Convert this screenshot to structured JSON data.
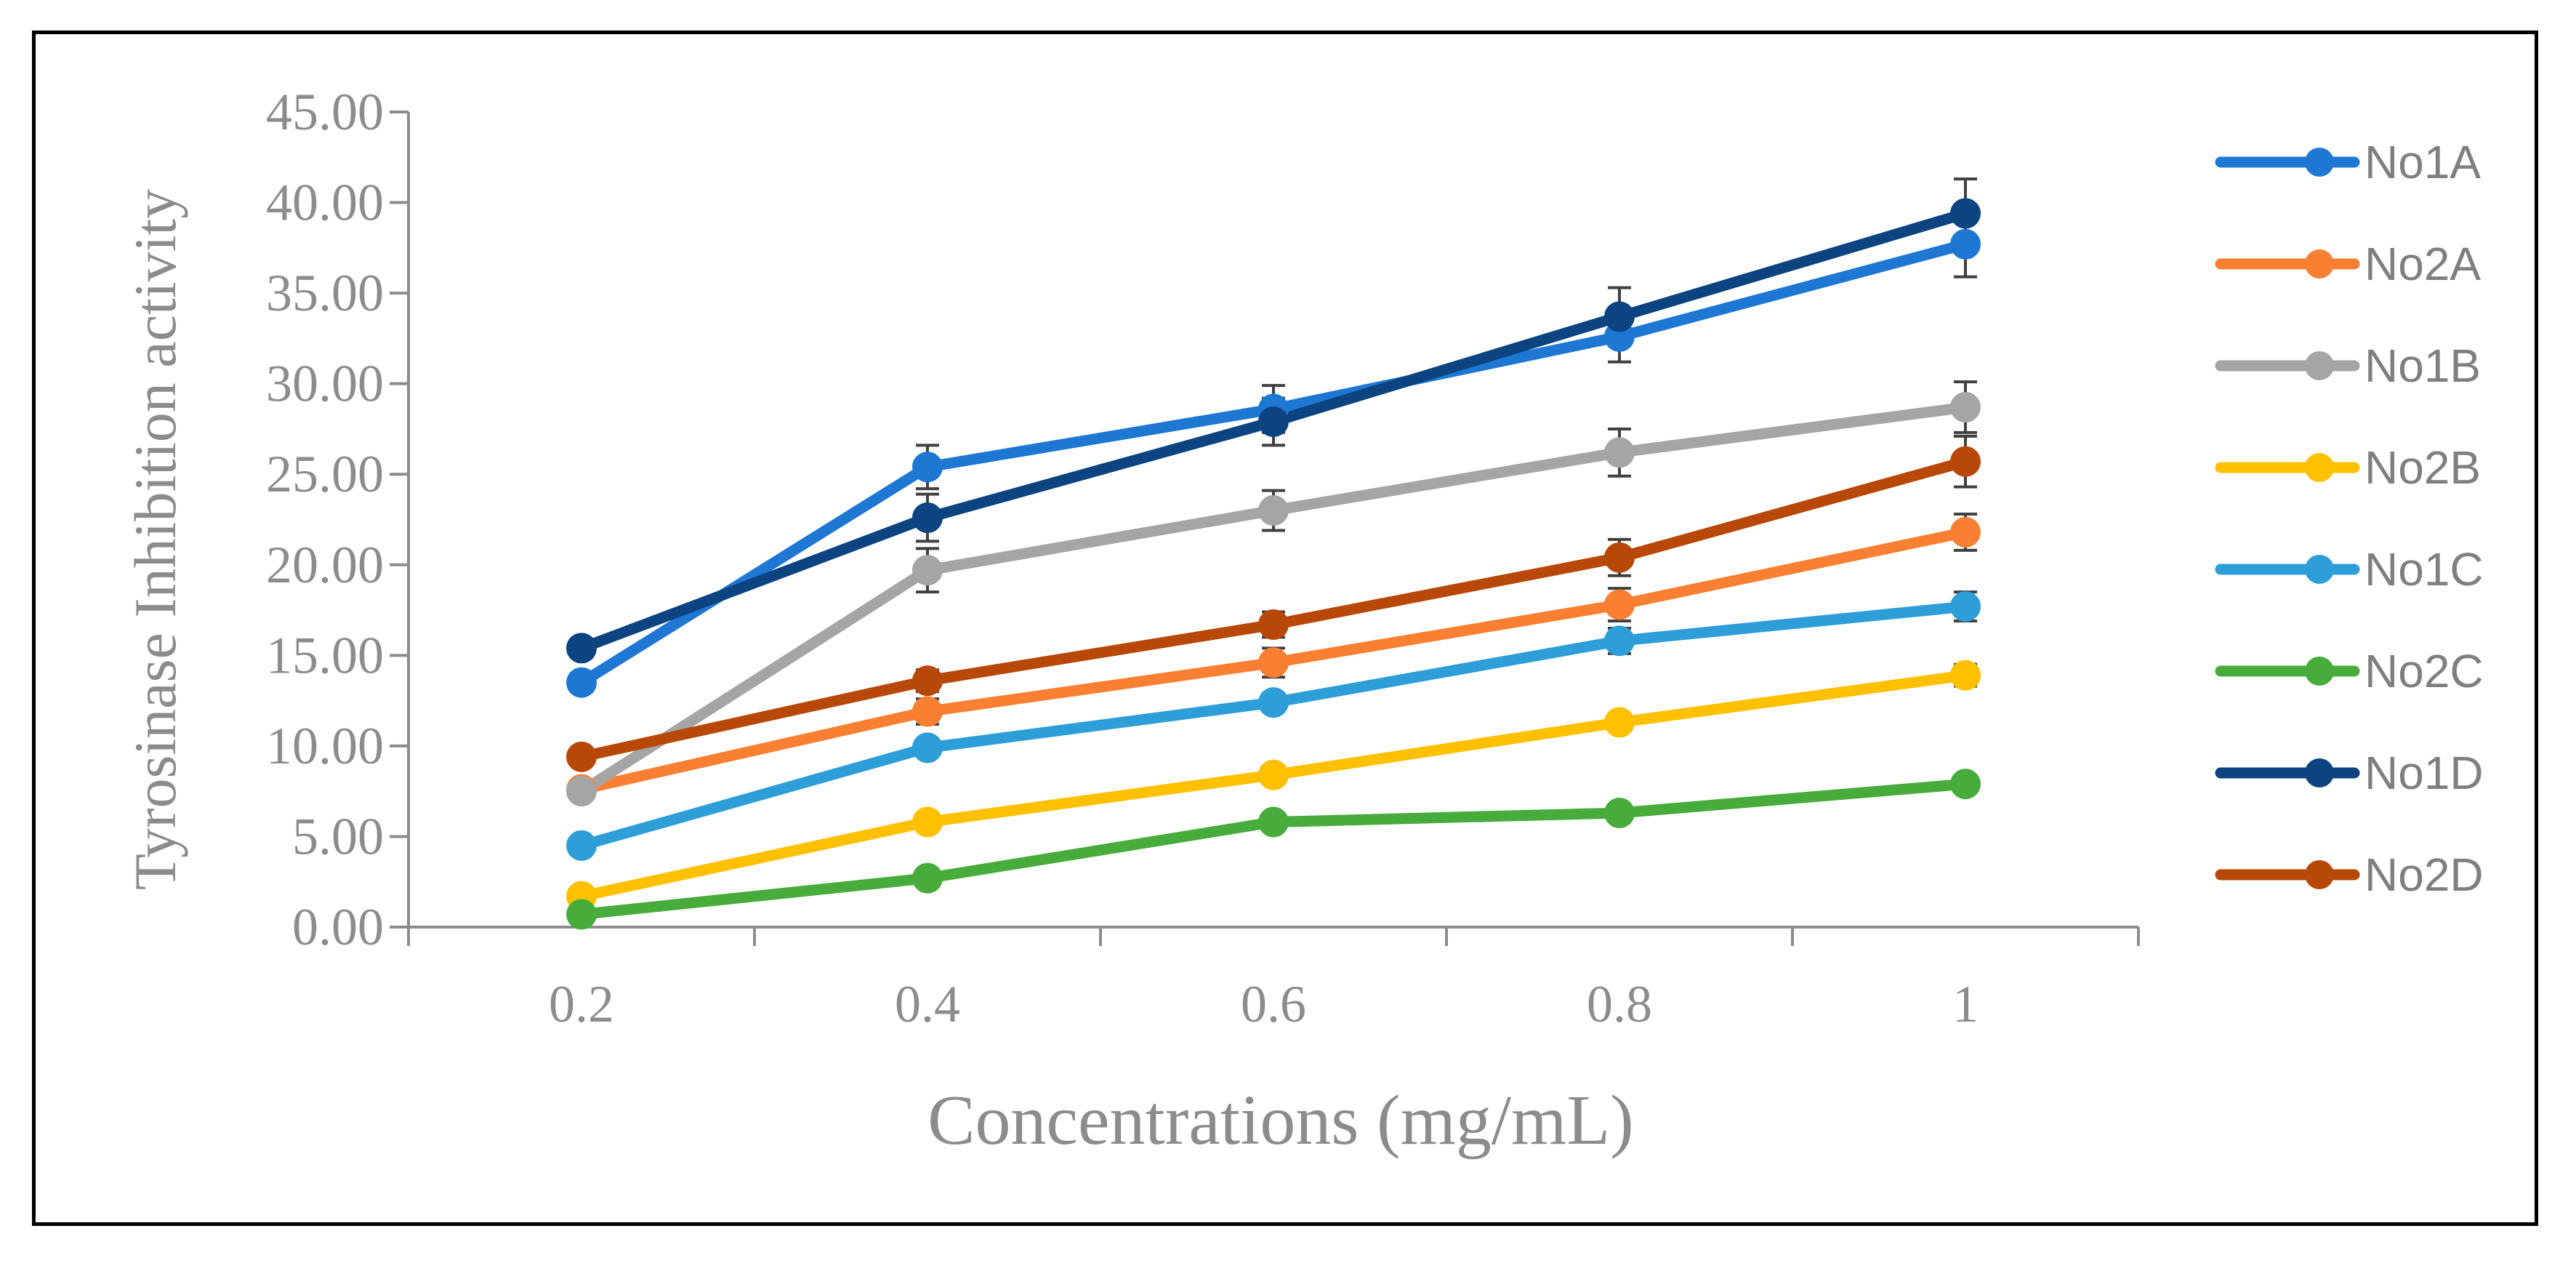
{
  "chart_data": {
    "type": "line",
    "title": "",
    "xlabel": "Concentrations (mg/mL)",
    "ylabel": "Tyrosinase Inhibition activity",
    "x": [
      0.2,
      0.4,
      0.6,
      0.8,
      1
    ],
    "x_tick_labels": [
      "0.2",
      "0.4",
      "0.6",
      "0.8",
      "1"
    ],
    "xlim": [
      0.1,
      1.1
    ],
    "ylim": [
      0,
      45
    ],
    "y_ticks": [
      0,
      5,
      10,
      15,
      20,
      25,
      30,
      35,
      40,
      45
    ],
    "y_tick_labels": [
      "0.00",
      "5.00",
      "10.00",
      "15.00",
      "20.00",
      "25.00",
      "30.00",
      "35.00",
      "40.00",
      "45.00"
    ],
    "grid": false,
    "legend_position": "right",
    "series": [
      {
        "name": "No1A",
        "color": "#1f77d4",
        "values": [
          13.5,
          25.4,
          28.6,
          32.6,
          37.7
        ],
        "errors": [
          0.5,
          1.2,
          1.3,
          1.4,
          1.8
        ]
      },
      {
        "name": "No2A",
        "color": "#f98033",
        "values": [
          7.6,
          11.9,
          14.6,
          17.8,
          21.8
        ],
        "errors": [
          0.3,
          0.7,
          0.8,
          0.9,
          1.0
        ]
      },
      {
        "name": "No1B",
        "color": "#a5a5a5",
        "values": [
          7.5,
          19.7,
          23.0,
          26.2,
          28.7
        ],
        "errors": [
          0.3,
          1.2,
          1.1,
          1.3,
          1.4
        ]
      },
      {
        "name": "No2B",
        "color": "#ffc000",
        "values": [
          1.7,
          5.8,
          8.4,
          11.3,
          13.9
        ],
        "errors": [
          0.2,
          0.3,
          0.3,
          0.4,
          0.6
        ]
      },
      {
        "name": "No1C",
        "color": "#2e9ed9",
        "values": [
          4.5,
          9.9,
          12.4,
          15.8,
          17.7
        ],
        "errors": [
          0.2,
          0.4,
          0.5,
          0.7,
          0.8
        ]
      },
      {
        "name": "No2C",
        "color": "#47ac3b",
        "values": [
          0.7,
          2.7,
          5.8,
          6.3,
          7.9
        ],
        "errors": [
          0.1,
          0.2,
          0.3,
          0.3,
          0.3
        ]
      },
      {
        "name": "No1D",
        "color": "#0b4480",
        "values": [
          15.4,
          22.6,
          27.9,
          33.7,
          39.4
        ],
        "errors": [
          0.5,
          1.3,
          1.3,
          1.6,
          1.9
        ]
      },
      {
        "name": "No2D",
        "color": "#b84807",
        "values": [
          9.4,
          13.6,
          16.7,
          20.4,
          25.7
        ],
        "errors": [
          0.4,
          0.6,
          0.7,
          1.0,
          1.4
        ]
      }
    ]
  }
}
